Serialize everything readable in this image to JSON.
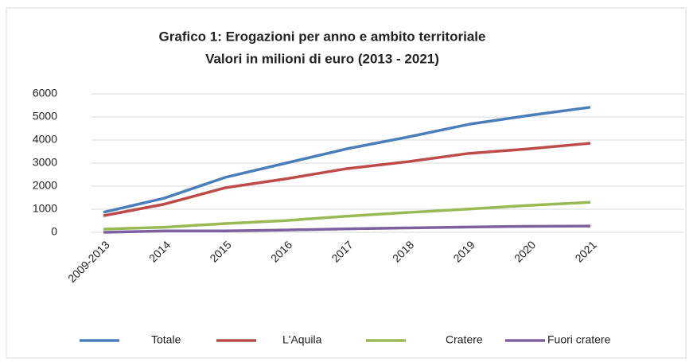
{
  "chart_data": {
    "type": "line",
    "title": [
      "Grafico 1: Erogazioni per anno e ambito territoriale",
      "Valori in milioni di euro  (2013 - 2021)"
    ],
    "categories": [
      "2009-2013",
      "2014",
      "2015",
      "2016",
      "2017",
      "2018",
      "2019",
      "2020",
      "2021"
    ],
    "series": [
      {
        "name": "Totale",
        "color": "#4a7ebb",
        "values": [
          870,
          1480,
          2380,
          3000,
          3620,
          4130,
          4680,
          5070,
          5420
        ]
      },
      {
        "name": "L'Aquila",
        "color": "#be4b48",
        "values": [
          720,
          1220,
          1930,
          2320,
          2760,
          3060,
          3420,
          3620,
          3860
        ]
      },
      {
        "name": "Cratere",
        "color": "#98b954",
        "values": [
          140,
          220,
          380,
          510,
          700,
          860,
          1010,
          1170,
          1300
        ]
      },
      {
        "name": "Fuori cratere",
        "color": "#7d60a0",
        "values": [
          0,
          60,
          60,
          100,
          150,
          190,
          230,
          260,
          270
        ]
      }
    ],
    "ylim": [
      0,
      6000
    ],
    "yticks": [
      0,
      1000,
      2000,
      3000,
      4000,
      5000,
      6000
    ],
    "grid": true,
    "legend": "bottom"
  }
}
